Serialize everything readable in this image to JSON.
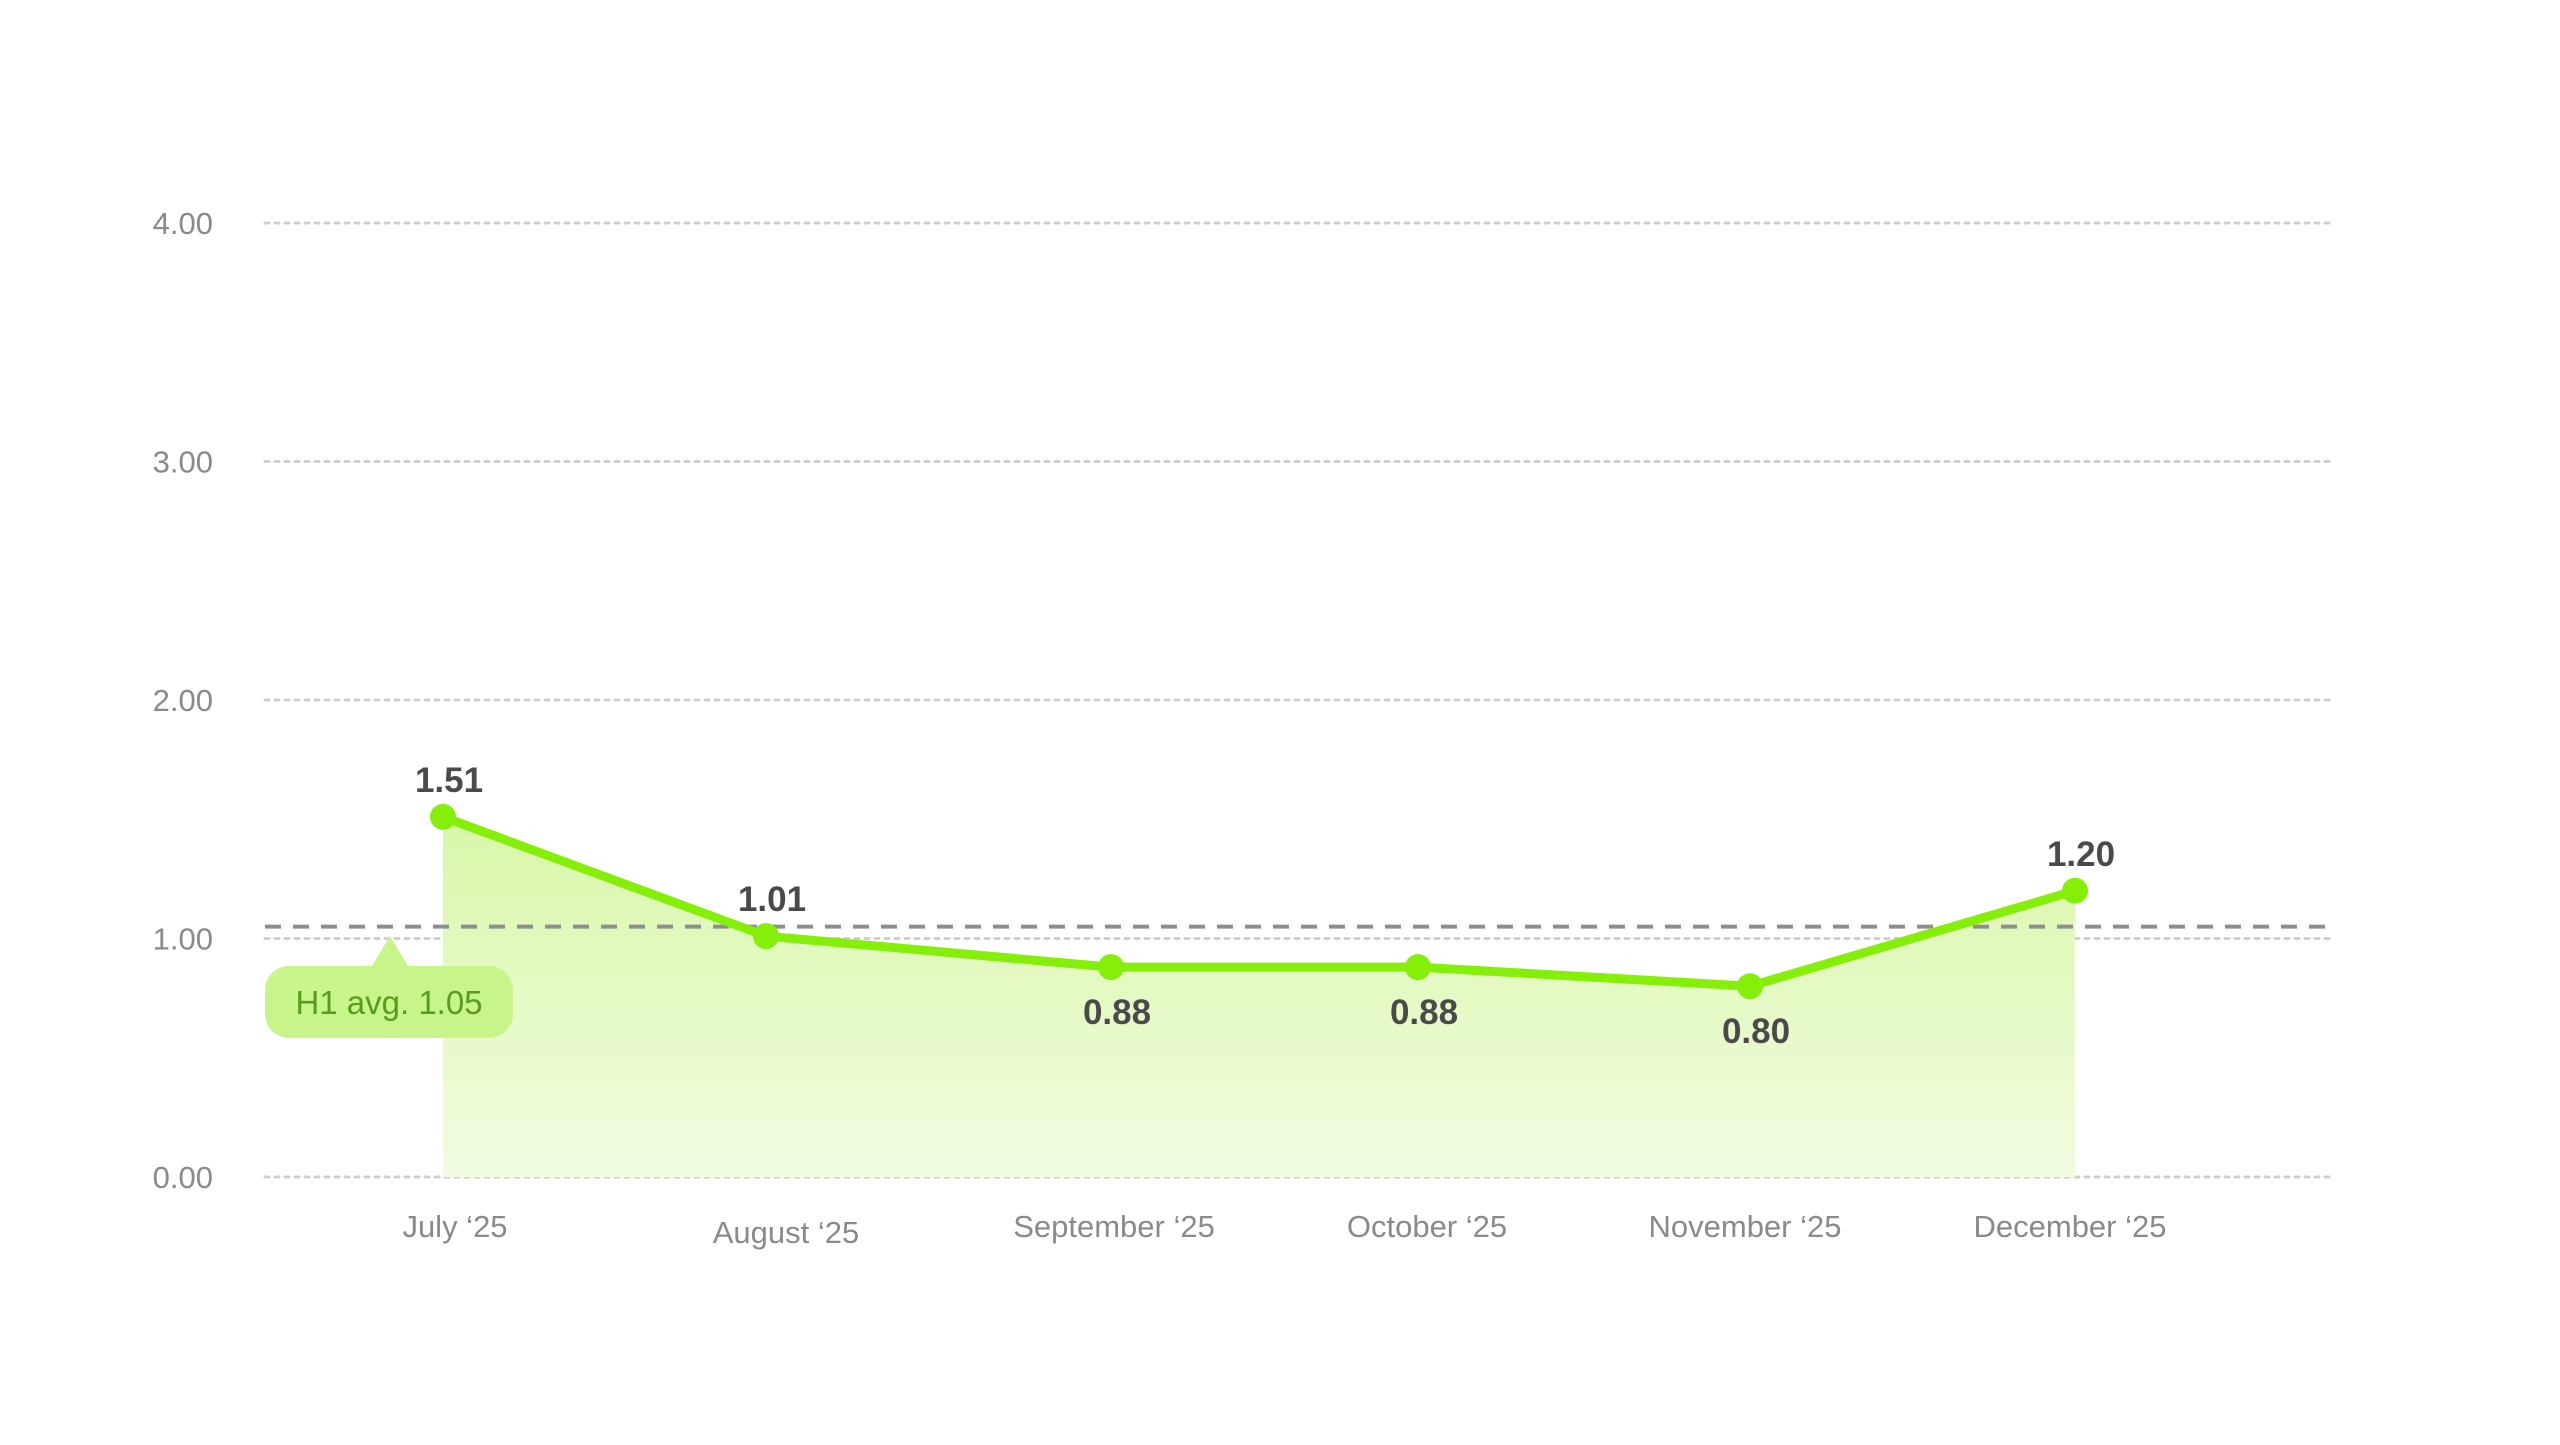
{
  "chart_data": {
    "type": "area",
    "categories": [
      "July ‘25",
      "August ‘25",
      "September ‘25",
      "October ‘25",
      "November ‘25",
      "December ‘25"
    ],
    "series": [
      {
        "values": [
          1.51,
          1.01,
          0.88,
          0.88,
          0.8,
          1.2
        ],
        "labels": [
          "1.51",
          "1.01",
          "0.88",
          "0.88",
          "0.80",
          "1.20"
        ]
      }
    ],
    "ylim": [
      0,
      4
    ],
    "yticks": [
      "0.00",
      "1.00",
      "2.00",
      "3.00",
      "4.00"
    ],
    "grid": true,
    "legend": "none",
    "reference_line": {
      "value": 1.05,
      "label": "H1 avg. 1.05"
    },
    "colors": {
      "line": "#86ef0a",
      "fill_top": "#d8f7a8",
      "fill_bottom": "#f1fce0",
      "badge_bg": "#c8f58a",
      "badge_text": "#5a9a1c",
      "grid": "#cfcfcf",
      "reference": "#8e8e8e",
      "tick_text": "#8a8a8a",
      "value_text": "#4a4a4a"
    }
  }
}
